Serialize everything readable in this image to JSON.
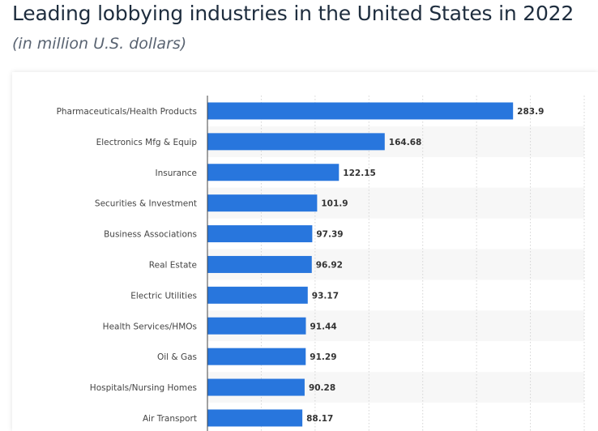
{
  "header": {
    "title": "Leading lobbying industries in the United States in 2022",
    "subtitle": "(in million U.S. dollars)"
  },
  "colors": {
    "bar": "#2876dd",
    "band": "#f7f7f7",
    "grid": "#d4d4d4",
    "axis": "#444444"
  },
  "chart_data": {
    "type": "bar",
    "orientation": "horizontal",
    "title": "Leading lobbying industries in the United States in 2022",
    "subtitle": "(in million U.S. dollars)",
    "xlabel": "",
    "ylabel": "",
    "xlim": [
      0,
      350
    ],
    "grid": true,
    "categories": [
      "Pharmaceuticals/Health Products",
      "Electronics Mfg & Equip",
      "Insurance",
      "Securities & Investment",
      "Business Associations",
      "Real Estate",
      "Electric Utilities",
      "Health Services/HMOs",
      "Oil & Gas",
      "Hospitals/Nursing Homes",
      "Air Transport"
    ],
    "values": [
      283.9,
      164.68,
      122.15,
      101.9,
      97.39,
      96.92,
      93.17,
      91.44,
      91.29,
      90.28,
      88.17
    ],
    "value_labels": [
      "283.9",
      "164.68",
      "122.15",
      "101.9",
      "97.39",
      "96.92",
      "93.17",
      "91.44",
      "91.29",
      "90.28",
      "88.17"
    ]
  }
}
